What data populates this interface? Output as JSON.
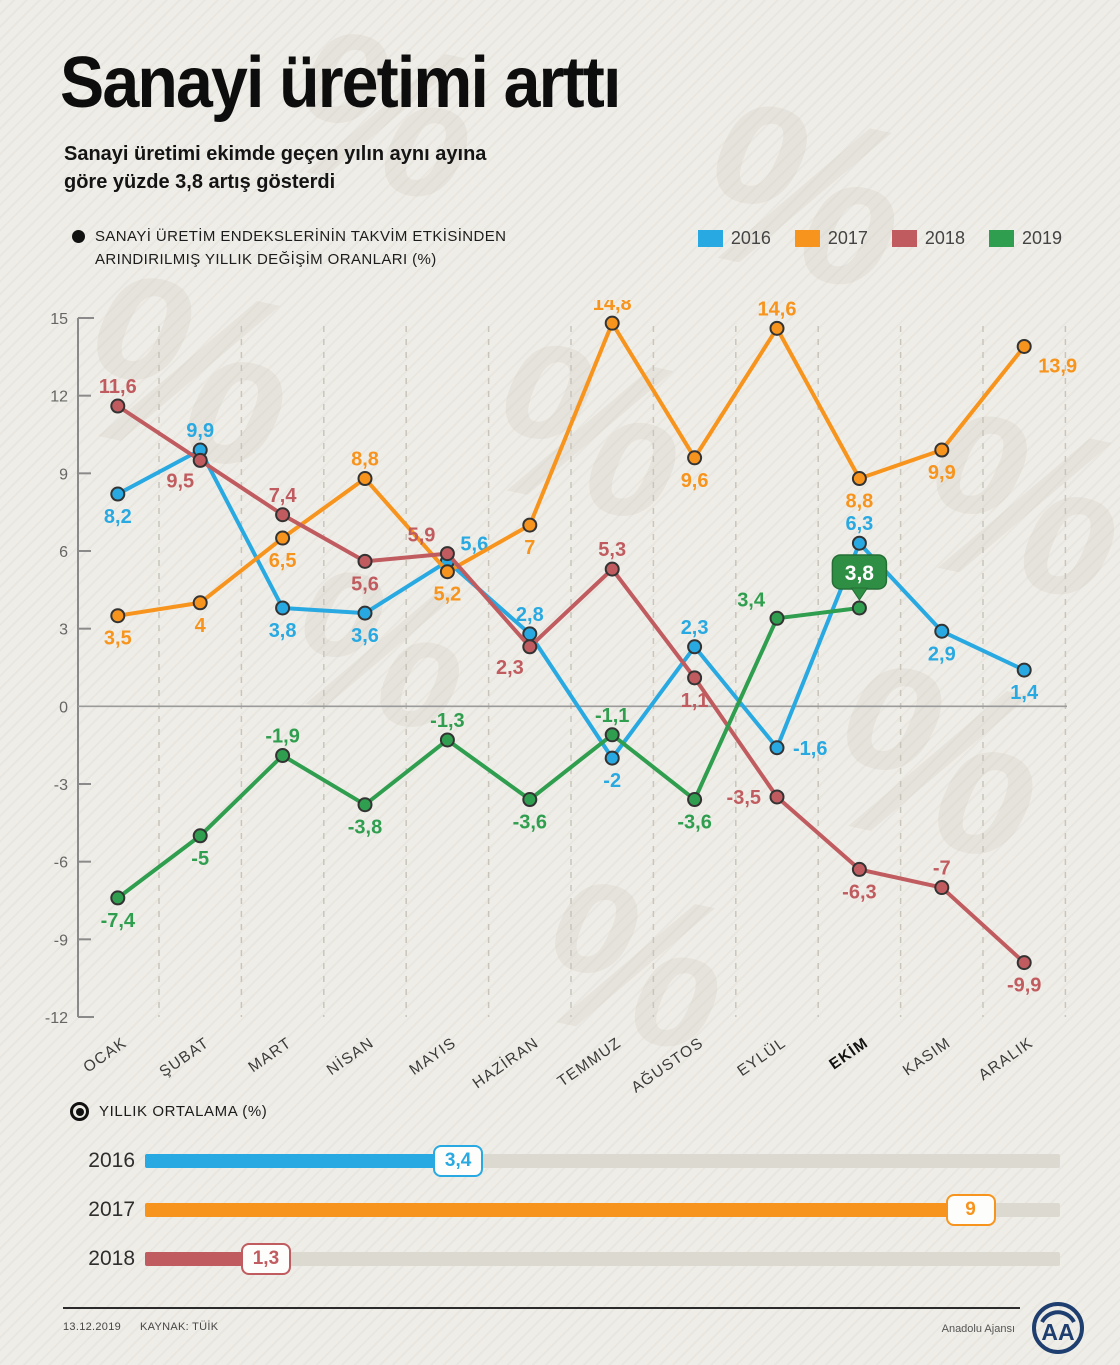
{
  "header": {
    "title": "Sanayi üretimi arttı",
    "subtitle": "Sanayi üretimi ekimde geçen yılın aynı ayına\ngöre yüzde 3,8 artış gösterdi"
  },
  "colors": {
    "background": "#efede7",
    "blue_2016": "#29a9e1",
    "orange_2017": "#f7941d",
    "red_2018": "#c05c5f",
    "green_2019": "#2f9e4f",
    "badge_green": "#2e8f44",
    "track_gray": "#dcd9d1",
    "footer_navy": "#1d3e6e"
  },
  "chart_data": [
    {
      "type": "line",
      "caption": "SANAYİ ÜRETİM ENDEKSLERİNİN TAKVİM ETKİSİNDEN\nARINDIRILMIŞ YILLIK DEĞİŞİM ORANLARI (%)",
      "categories": [
        "OCAK",
        "ŞUBAT",
        "MART",
        "NİSAN",
        "MAYIS",
        "HAZİRAN",
        "TEMMUZ",
        "AĞUSTOS",
        "EYLÜL",
        "EKİM",
        "KASIM",
        "ARALIK"
      ],
      "highlight_category": "EKİM",
      "ylim": [
        -12,
        15
      ],
      "yticks": [
        15,
        12,
        9,
        6,
        3,
        0,
        -3,
        -6,
        -9,
        -12
      ],
      "grid": "dashed vertical separators between months",
      "legend_position": "top-right",
      "series": [
        {
          "name": "2016",
          "color": "#29a9e1",
          "values": [
            8.2,
            9.9,
            3.8,
            3.6,
            5.6,
            2.8,
            -2,
            2.3,
            -1.6,
            6.3,
            2.9,
            1.4
          ],
          "labels": [
            "8,2",
            "9,9",
            "3,8",
            "3,6",
            "5,6",
            "2,8",
            "-2",
            "2,3",
            "-1,6",
            "6,3",
            "2,9",
            "1,4"
          ],
          "label_pos": [
            "below",
            "above",
            "below",
            "below",
            "above-right",
            "above",
            "below",
            "above",
            "right",
            "above",
            "below",
            "below"
          ]
        },
        {
          "name": "2017",
          "color": "#f7941d",
          "values": [
            3.5,
            4,
            6.5,
            8.8,
            5.2,
            7,
            14.8,
            9.6,
            14.6,
            8.8,
            9.9,
            13.9
          ],
          "labels": [
            "3,5",
            "4",
            "6,5",
            "8,8",
            "5,2",
            "7",
            "14,8",
            "9,6",
            "14,6",
            "8,8",
            "9,9",
            "13,9"
          ],
          "label_pos": [
            "below",
            "below",
            "below",
            "above",
            "below",
            "below",
            "above",
            "below",
            "above",
            "below",
            "below",
            "below-right"
          ]
        },
        {
          "name": "2018",
          "color": "#c05c5f",
          "values": [
            11.6,
            9.5,
            7.4,
            5.6,
            5.9,
            2.3,
            5.3,
            1.1,
            -3.5,
            -6.3,
            -7,
            -9.9
          ],
          "labels": [
            "11,6",
            "9,5",
            "7,4",
            "5,6",
            "5,9",
            "2,3",
            "5,3",
            "1,1",
            "-3,5",
            "-6,3",
            "-7",
            "-9,9"
          ],
          "label_pos": [
            "above",
            "below-left",
            "above",
            "below",
            "above-left",
            "below-left",
            "above",
            "below",
            "left",
            "below",
            "above",
            "below"
          ]
        },
        {
          "name": "2019",
          "color": "#2f9e4f",
          "values": [
            -7.4,
            -5,
            -1.9,
            -3.8,
            -1.3,
            -3.6,
            -1.1,
            -3.6,
            3.4,
            3.8,
            null,
            null
          ],
          "labels": [
            "-7,4",
            "-5",
            "-1,9",
            "-3,8",
            "-1,3",
            "-3,6",
            "-1,1",
            "-3,6",
            "3,4",
            "3,8",
            null,
            null
          ],
          "label_pos": [
            "below",
            "below",
            "above",
            "below",
            "above",
            "below",
            "above",
            "below",
            "above-left",
            "badge",
            null,
            null
          ],
          "badge": {
            "index": 9,
            "label": "3,8",
            "color": "#2e8f44"
          }
        }
      ]
    },
    {
      "type": "bar",
      "title": "YILLIK ORTALAMA (%)",
      "categories": [
        "2016",
        "2017",
        "2018"
      ],
      "values": [
        3.4,
        9,
        1.3
      ],
      "labels": [
        "3,4",
        "9",
        "1,3"
      ],
      "colors": [
        "#29a9e1",
        "#f7941d",
        "#c05c5f"
      ],
      "xlim": [
        0,
        10
      ]
    }
  ],
  "footer": {
    "date": "13.12.2019",
    "source": "KAYNAK: TÜİK",
    "agency": "Anadolu Ajansı",
    "logo": "AA"
  }
}
